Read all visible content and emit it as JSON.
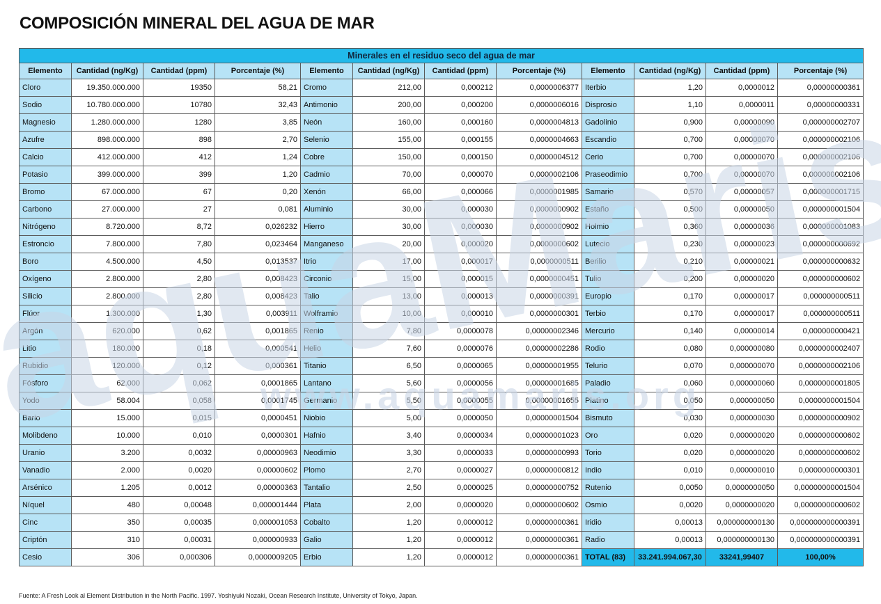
{
  "title": "COMPOSICIÓN MINERAL DEL AGUA DE MAR",
  "table_caption": "Minerales en el residuo seco del agua de mar",
  "headers": [
    "Elemento",
    "Cantidad (ng/Kg)",
    "Cantidad (ppm)",
    "Porcentaje (%)",
    "Elemento",
    "Cantidad (ng/Kg)",
    "Cantidad (ppm)",
    "Porcentaje (%)",
    "Elemento",
    "Cantidad (ng/Kg)",
    "Cantidad (ppm)",
    "Porcentaje (%)"
  ],
  "rows": [
    [
      "Cloro",
      "19.350.000.000",
      "19350",
      "58,21",
      "Cromo",
      "212,00",
      "0,000212",
      "0,0000006377",
      "Iterbio",
      "1,20",
      "0,0000012",
      "0,00000000361"
    ],
    [
      "Sodio",
      "10.780.000.000",
      "10780",
      "32,43",
      "Antimonio",
      "200,00",
      "0,000200",
      "0,0000006016",
      "Disprosio",
      "1,10",
      "0,0000011",
      "0,00000000331"
    ],
    [
      "Magnesio",
      "1.280.000.000",
      "1280",
      "3,85",
      "Neón",
      "160,00",
      "0,000160",
      "0,0000004813",
      "Gadolinio",
      "0,900",
      "0,00000090",
      "0,000000002707"
    ],
    [
      "Azufre",
      "898.000.000",
      "898",
      "2,70",
      "Selenio",
      "155,00",
      "0,000155",
      "0,0000004663",
      "Escandio",
      "0,700",
      "0,00000070",
      "0,000000002106"
    ],
    [
      "Calcio",
      "412.000.000",
      "412",
      "1,24",
      "Cobre",
      "150,00",
      "0,000150",
      "0,0000004512",
      "Cerio",
      "0,700",
      "0,00000070",
      "0,000000002106"
    ],
    [
      "Potasio",
      "399.000.000",
      "399",
      "1,20",
      "Cadmio",
      "70,00",
      "0,000070",
      "0,0000002106",
      "Praseodimio",
      "0,700",
      "0,00000070",
      "0,000000002106"
    ],
    [
      "Bromo",
      "67.000.000",
      "67",
      "0,20",
      "Xenón",
      "66,00",
      "0,000066",
      "0,0000001985",
      "Samario",
      "0,570",
      "0,00000057",
      "0,000000001715"
    ],
    [
      "Carbono",
      "27.000.000",
      "27",
      "0,081",
      "Aluminio",
      "30,00",
      "0,000030",
      "0,0000000902",
      "Estaño",
      "0,500",
      "0,00000050",
      "0,000000001504"
    ],
    [
      "Nitrógeno",
      "8.720.000",
      "8,72",
      "0,026232",
      "Hierro",
      "30,00",
      "0,000030",
      "0,0000000902",
      "Holmio",
      "0,360",
      "0,00000036",
      "0,000000001083"
    ],
    [
      "Estroncio",
      "7.800.000",
      "7,80",
      "0,023464",
      "Manganeso",
      "20,00",
      "0,000020",
      "0,0000000602",
      "Lutecio",
      "0,230",
      "0,00000023",
      "0,000000000692"
    ],
    [
      "Boro",
      "4.500.000",
      "4,50",
      "0,013537",
      "Itrio",
      "17,00",
      "0,000017",
      "0,0000000511",
      "Berilio",
      "0,210",
      "0,00000021",
      "0,000000000632"
    ],
    [
      "Oxígeno",
      "2.800.000",
      "2,80",
      "0,008423",
      "Circonio",
      "15,00",
      "0,000015",
      "0,0000000451",
      "Tulio",
      "0,200",
      "0,00000020",
      "0,000000000602"
    ],
    [
      "Silicio",
      "2.800.000",
      "2,80",
      "0,008423",
      "Talio",
      "13,00",
      "0,000013",
      "0,0000000391",
      "Europio",
      "0,170",
      "0,00000017",
      "0,000000000511"
    ],
    [
      "Flúor",
      "1.300.000",
      "1,30",
      "0,003911",
      "Wolframio",
      "10,00",
      "0,000010",
      "0,0000000301",
      "Terbio",
      "0,170",
      "0,00000017",
      "0,000000000511"
    ],
    [
      "Argón",
      "620.000",
      "0,62",
      "0,001865",
      "Renio",
      "7,80",
      "0,0000078",
      "0,00000002346",
      "Mercurio",
      "0,140",
      "0,00000014",
      "0,000000000421"
    ],
    [
      "Litio",
      "180.000",
      "0,18",
      "0,000541",
      "Helio",
      "7,60",
      "0,0000076",
      "0,00000002286",
      "Rodio",
      "0,080",
      "0,000000080",
      "0,0000000002407"
    ],
    [
      "Rubidio",
      "120.000",
      "0,12",
      "0,000361",
      "Titanio",
      "6,50",
      "0,0000065",
      "0,00000001955",
      "Telurio",
      "0,070",
      "0,000000070",
      "0,0000000002106"
    ],
    [
      "Fósforo",
      "62.000",
      "0,062",
      "0,0001865",
      "Lantano",
      "5,60",
      "0,0000056",
      "0,00000001685",
      "Paladio",
      "0,060",
      "0,000000060",
      "0,0000000001805"
    ],
    [
      "Yodo",
      "58.004",
      "0,058",
      "0,0001745",
      "Germanio",
      "5,50",
      "0,0000055",
      "0,00000001655",
      "Platino",
      "0,050",
      "0,000000050",
      "0,0000000001504"
    ],
    [
      "Bario",
      "15.000",
      "0,015",
      "0,0000451",
      "Niobio",
      "5,00",
      "0,0000050",
      "0,00000001504",
      "Bismuto",
      "0,030",
      "0,000000030",
      "0,0000000000902"
    ],
    [
      "Molibdeno",
      "10.000",
      "0,010",
      "0,0000301",
      "Hafnio",
      "3,40",
      "0,0000034",
      "0,00000001023",
      "Oro",
      "0,020",
      "0,000000020",
      "0,0000000000602"
    ],
    [
      "Uranio",
      "3.200",
      "0,0032",
      "0,00000963",
      "Neodimio",
      "3,30",
      "0,0000033",
      "0,00000000993",
      "Torio",
      "0,020",
      "0,000000020",
      "0,0000000000602"
    ],
    [
      "Vanadio",
      "2.000",
      "0,0020",
      "0,00000602",
      "Plomo",
      "2,70",
      "0,0000027",
      "0,00000000812",
      "Indio",
      "0,010",
      "0,000000010",
      "0,0000000000301"
    ],
    [
      "Arsénico",
      "1.205",
      "0,0012",
      "0,00000363",
      "Tantalio",
      "2,50",
      "0,0000025",
      "0,00000000752",
      "Rutenio",
      "0,0050",
      "0,0000000050",
      "0,00000000001504"
    ],
    [
      "Níquel",
      "480",
      "0,00048",
      "0,000001444",
      "Plata",
      "2,00",
      "0,0000020",
      "0,00000000602",
      "Osmio",
      "0,0020",
      "0,0000000020",
      "0,00000000000602"
    ],
    [
      "Cinc",
      "350",
      "0,00035",
      "0,000001053",
      "Cobalto",
      "1,20",
      "0,0000012",
      "0,00000000361",
      "Iridio",
      "0,00013",
      "0,000000000130",
      "0,000000000000391"
    ],
    [
      "Criptón",
      "310",
      "0,00031",
      "0,000000933",
      "Galio",
      "1,20",
      "0,0000012",
      "0,00000000361",
      "Radio",
      "0,00013",
      "0,000000000130",
      "0,000000000000391"
    ],
    [
      "Cesio",
      "306",
      "0,000306",
      "0,0000009205",
      "Erbio",
      "1,20",
      "0,0000012",
      "0,00000000361",
      "TOTAL (83)",
      "33.241.994.067,30",
      "33241,99407",
      "100,00%"
    ]
  ],
  "watermark": {
    "brand": "aquaMaris",
    "url": "www.aquamaris.org"
  },
  "footnote": "Fuente: A Fresh Look al Element Distribution in the North Pacific. 1997. Yoshiyuki Nozaki, Ocean Research Institute, University of Tokyo, Japan.",
  "colors": {
    "caption_bg": "#22b9ea",
    "label_bg": "#b7e3f6",
    "watermark": "#c9d6e6"
  }
}
